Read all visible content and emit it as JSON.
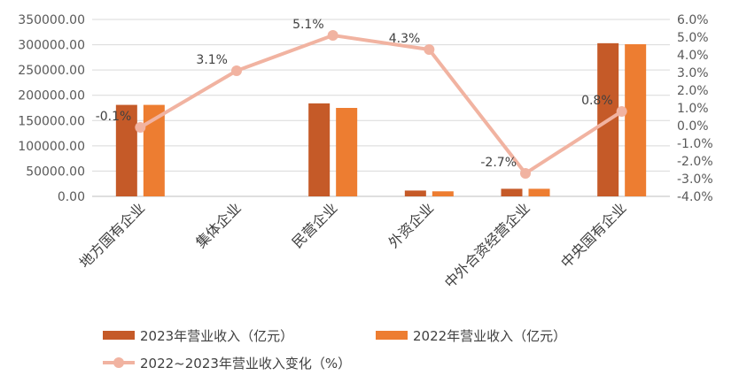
{
  "chart_data": {
    "type": "bar",
    "categories": [
      "地方国有企业",
      "集体企业",
      "民营企业",
      "外资企业",
      "中外合资经营企业",
      "中央国有企业"
    ],
    "series": [
      {
        "name": "2023年营业收入（亿元）",
        "type": "bar",
        "axis": "left",
        "color": "#C55A28",
        "values": [
          181000,
          0,
          184000,
          11500,
          15000,
          303000
        ]
      },
      {
        "name": "2022年营业收入（亿元）",
        "type": "bar",
        "axis": "left",
        "color": "#ED7D31",
        "values": [
          181000,
          0,
          175000,
          10000,
          15000,
          301000
        ]
      },
      {
        "name": "2022~2023年营业收入变化（%）",
        "type": "line",
        "axis": "right",
        "color": "#F1B3A1",
        "values": [
          -0.1,
          3.1,
          5.1,
          4.3,
          -2.7,
          0.8
        ],
        "labels": [
          "-0.1%",
          "3.1%",
          "5.1%",
          "4.3%",
          "-2.7%",
          "0.8%"
        ]
      }
    ],
    "y_left": {
      "lim": [
        0,
        350000
      ],
      "ticks": [
        0,
        50000,
        100000,
        150000,
        200000,
        250000,
        300000,
        350000
      ],
      "tick_labels": [
        "0.00",
        "50000.00",
        "100000.00",
        "150000.00",
        "200000.00",
        "250000.00",
        "300000.00",
        "350000.00"
      ]
    },
    "y_right": {
      "lim": [
        -4.0,
        6.0
      ],
      "ticks": [
        -4,
        -3,
        -2,
        -1,
        0,
        1,
        2,
        3,
        4,
        5,
        6
      ],
      "tick_labels": [
        "-4.0%",
        "-3.0%",
        "-2.0%",
        "-1.0%",
        "0.0%",
        "1.0%",
        "2.0%",
        "3.0%",
        "4.0%",
        "5.0%",
        "6.0%"
      ]
    },
    "grid": true,
    "legend_position": "bottom"
  }
}
